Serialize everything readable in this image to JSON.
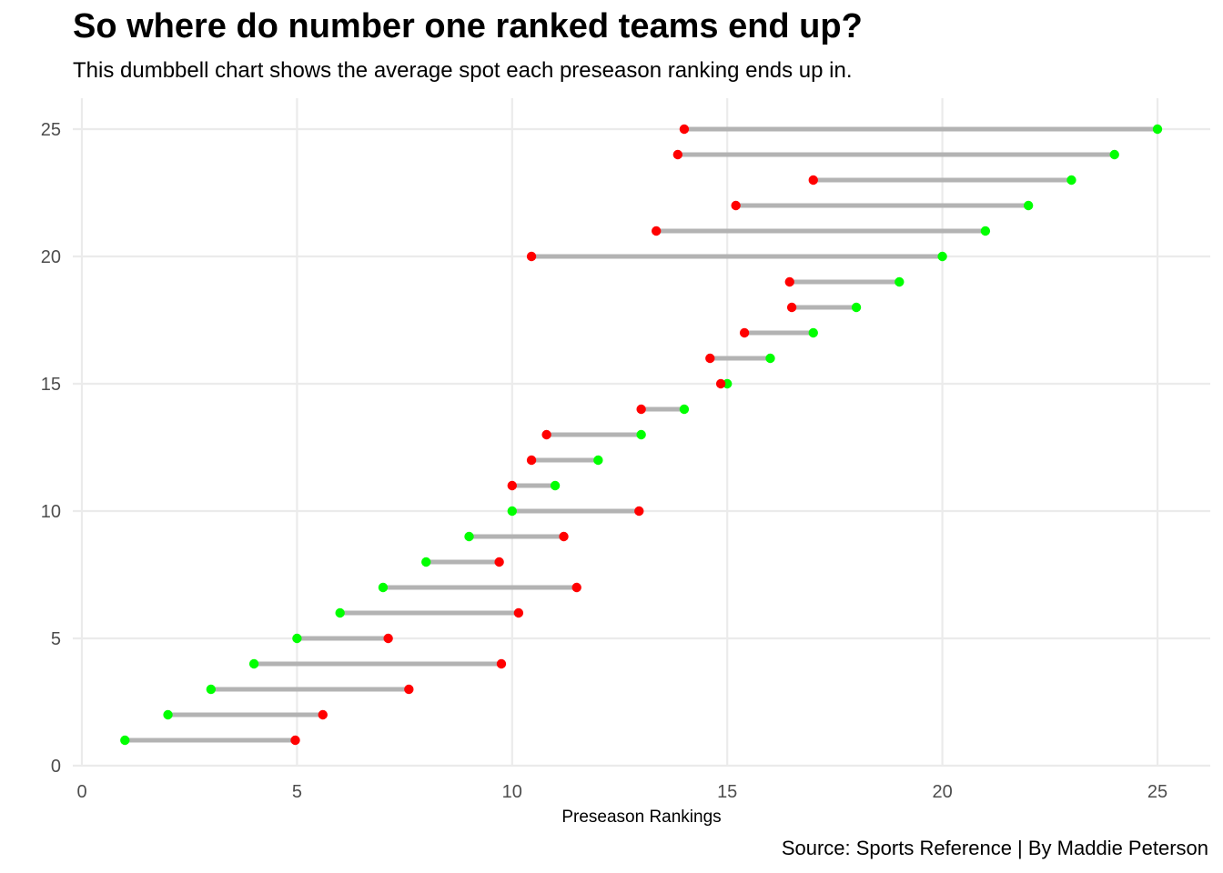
{
  "header": {
    "title": "So where do number one ranked teams end up?",
    "subtitle": "This dumbbell chart shows the average spot each preseason ranking ends up in.",
    "caption": "Source: Sports Reference | By Maddie Peterson"
  },
  "chart_data": {
    "type": "dumbbell",
    "title": "So where do number one ranked teams end up?",
    "subtitle": "This dumbbell chart shows the average spot each preseason ranking ends up in.",
    "xlabel": "Preseason Rankings",
    "ylabel": "",
    "xlim": [
      0,
      26
    ],
    "ylim": [
      0,
      26.2
    ],
    "x_ticks": [
      0,
      5,
      10,
      15,
      20,
      25
    ],
    "y_ticks": [
      0,
      5,
      10,
      15,
      20,
      25
    ],
    "grid": true,
    "colors": {
      "preseason": "#00ff00",
      "final": "#ff0000",
      "segment": "#b3b3b3",
      "grid": "#ebebeb"
    },
    "rows": [
      {
        "y": 1,
        "preseason": 1,
        "final": 4.96
      },
      {
        "y": 2,
        "preseason": 2,
        "final": 5.6
      },
      {
        "y": 3,
        "preseason": 3,
        "final": 7.6
      },
      {
        "y": 4,
        "preseason": 4,
        "final": 9.75
      },
      {
        "y": 5,
        "preseason": 5,
        "final": 7.12
      },
      {
        "y": 6,
        "preseason": 6,
        "final": 10.15
      },
      {
        "y": 7,
        "preseason": 7,
        "final": 11.5
      },
      {
        "y": 8,
        "preseason": 8,
        "final": 9.7
      },
      {
        "y": 9,
        "preseason": 9,
        "final": 11.2
      },
      {
        "y": 10,
        "preseason": 10,
        "final": 12.95
      },
      {
        "y": 11,
        "preseason": 11,
        "final": 10.0
      },
      {
        "y": 12,
        "preseason": 12,
        "final": 10.45
      },
      {
        "y": 13,
        "preseason": 13,
        "final": 10.8
      },
      {
        "y": 14,
        "preseason": 14,
        "final": 13.0
      },
      {
        "y": 15,
        "preseason": 15,
        "final": 14.85
      },
      {
        "y": 16,
        "preseason": 16,
        "final": 14.6
      },
      {
        "y": 17,
        "preseason": 17,
        "final": 15.4
      },
      {
        "y": 18,
        "preseason": 18,
        "final": 16.5
      },
      {
        "y": 19,
        "preseason": 19,
        "final": 16.45
      },
      {
        "y": 20,
        "preseason": 20,
        "final": 10.45
      },
      {
        "y": 21,
        "preseason": 21,
        "final": 13.35
      },
      {
        "y": 22,
        "preseason": 22,
        "final": 15.2
      },
      {
        "y": 23,
        "preseason": 23,
        "final": 17.0
      },
      {
        "y": 24,
        "preseason": 24,
        "final": 13.85
      },
      {
        "y": 25,
        "preseason": 25,
        "final": 14.0
      }
    ]
  }
}
